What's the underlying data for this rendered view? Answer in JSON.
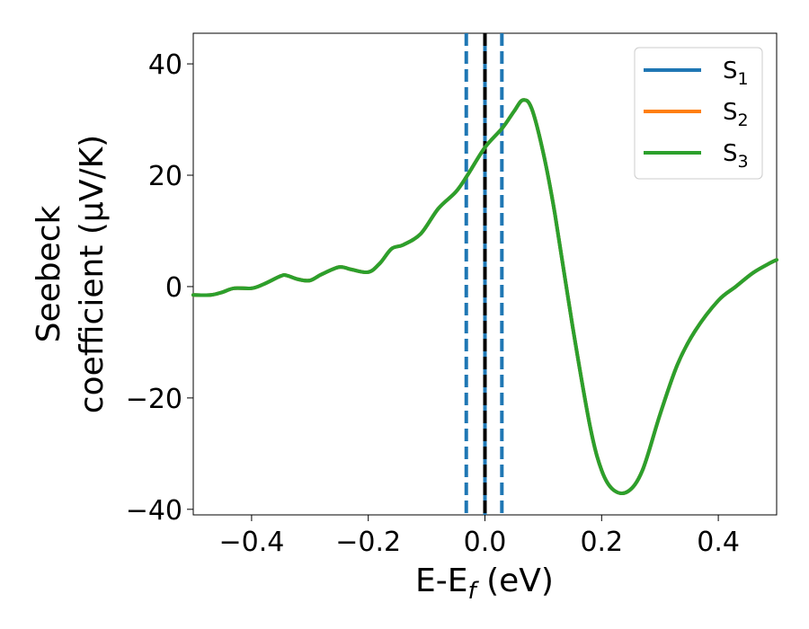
{
  "colors": {
    "s1": "#1f77b4",
    "s2": "#ff7f0e",
    "s3": "#2ca02c",
    "fermi_line": "#000000",
    "window_lines": "#1f77b4"
  },
  "chart_data": {
    "type": "line",
    "xlabel": {
      "main": "E-E",
      "sub": "f",
      "tail": " (eV)"
    },
    "ylabel": {
      "line1": "Seebeck",
      "line2": "coefficient  (μV/K)"
    },
    "xlim": [
      -0.5,
      0.5
    ],
    "ylim": [
      -41,
      45.5
    ],
    "x_ticks": [
      -0.4,
      -0.2,
      0.0,
      0.2,
      0.4
    ],
    "x_tick_labels": [
      "−0.4",
      "−0.2",
      "0.0",
      "0.2",
      "0.4"
    ],
    "y_ticks": [
      -40,
      -20,
      0,
      20,
      40
    ],
    "y_tick_labels": [
      "−40",
      "−20",
      "0",
      "20",
      "40"
    ],
    "grid": false,
    "legend_position": "top-right",
    "vertical_lines": [
      {
        "x": -0.032,
        "style": "dashed",
        "color_key": "window_lines"
      },
      {
        "x": 0.0,
        "style": "solid",
        "color_key": "window_lines"
      },
      {
        "x": 0.0,
        "style": "dashed",
        "color_key": "fermi_line"
      },
      {
        "x": 0.029,
        "style": "dashed",
        "color_key": "window_lines"
      }
    ],
    "x": [
      -0.5,
      -0.47,
      -0.45,
      -0.43,
      -0.4,
      -0.38,
      -0.35,
      -0.34,
      -0.32,
      -0.3,
      -0.28,
      -0.25,
      -0.23,
      -0.2,
      -0.18,
      -0.16,
      -0.14,
      -0.11,
      -0.08,
      -0.05,
      -0.03,
      0.0,
      0.03,
      0.05,
      0.065,
      0.08,
      0.1,
      0.12,
      0.15,
      0.18,
      0.2,
      0.22,
      0.245,
      0.27,
      0.3,
      0.33,
      0.36,
      0.4,
      0.43,
      0.46,
      0.49,
      0.5
    ],
    "series": [
      {
        "name_main": "S",
        "name_sub": "1",
        "color_key": "s1",
        "values": [
          -1.5,
          -1.5,
          -1.0,
          -0.3,
          -0.3,
          0.4,
          1.9,
          2.0,
          1.3,
          1.1,
          2.2,
          3.5,
          3.1,
          2.6,
          4.2,
          6.8,
          7.5,
          9.5,
          14.0,
          17.0,
          20.0,
          25.0,
          28.5,
          31.5,
          33.5,
          32.0,
          24.0,
          13.0,
          -7.0,
          -25.0,
          -33.0,
          -36.5,
          -36.8,
          -33.0,
          -23.0,
          -14.0,
          -8.0,
          -2.5,
          0.0,
          2.5,
          4.3,
          4.8
        ]
      },
      {
        "name_main": "S",
        "name_sub": "2",
        "color_key": "s2",
        "values": [
          -1.5,
          -1.5,
          -1.0,
          -0.3,
          -0.3,
          0.4,
          1.9,
          2.0,
          1.3,
          1.1,
          2.2,
          3.5,
          3.1,
          2.6,
          4.2,
          6.8,
          7.5,
          9.5,
          14.0,
          17.0,
          20.0,
          25.0,
          28.5,
          31.5,
          33.5,
          32.0,
          24.0,
          13.0,
          -7.0,
          -25.0,
          -33.0,
          -36.5,
          -36.8,
          -33.0,
          -23.0,
          -14.0,
          -8.0,
          -2.5,
          0.0,
          2.5,
          4.3,
          4.8
        ]
      },
      {
        "name_main": "S",
        "name_sub": "3",
        "color_key": "s3",
        "values": [
          -1.5,
          -1.5,
          -1.0,
          -0.3,
          -0.3,
          0.4,
          1.9,
          2.0,
          1.3,
          1.1,
          2.2,
          3.5,
          3.1,
          2.6,
          4.2,
          6.8,
          7.5,
          9.5,
          14.0,
          17.0,
          20.0,
          25.0,
          28.5,
          31.5,
          33.5,
          32.0,
          24.0,
          13.0,
          -7.0,
          -25.0,
          -33.0,
          -36.5,
          -36.8,
          -33.0,
          -23.0,
          -14.0,
          -8.0,
          -2.5,
          0.0,
          2.5,
          4.3,
          4.8
        ]
      }
    ]
  }
}
